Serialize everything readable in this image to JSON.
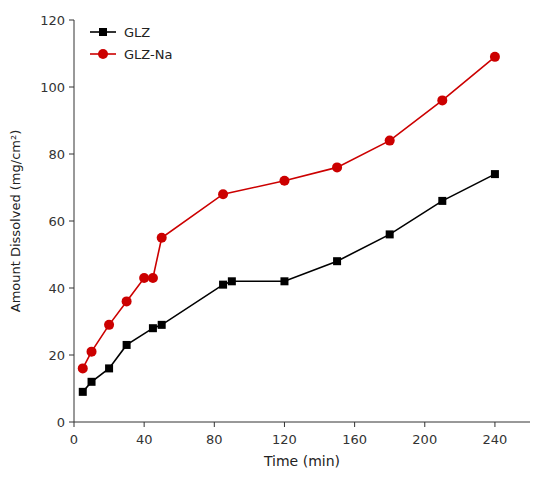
{
  "chart_data": {
    "type": "line",
    "x_label": "Time (min)",
    "y_label": "Amount Dissolved (mg/cm²)",
    "series": [
      {
        "name": "GLZ",
        "color": "#000000",
        "marker": "square",
        "x": [
          5,
          10,
          20,
          30,
          45,
          50,
          85,
          90,
          120,
          150,
          180,
          210,
          240
        ],
        "values": [
          9,
          12,
          16,
          23,
          28,
          29,
          41,
          42,
          42,
          48,
          56,
          66,
          74
        ]
      },
      {
        "name": "GLZ-Na",
        "color": "#cc0000",
        "marker": "circle",
        "x": [
          5,
          10,
          20,
          30,
          40,
          45,
          50,
          85,
          120,
          150,
          180,
          210,
          240
        ],
        "values": [
          16,
          21,
          29,
          36,
          43,
          43,
          55,
          68,
          72,
          76,
          84,
          96,
          109
        ]
      }
    ],
    "xlim": [
      0,
      260
    ],
    "ylim": [
      0,
      120
    ],
    "xticks": [
      0,
      40,
      80,
      120,
      160,
      200,
      240
    ],
    "yticks": [
      0,
      20,
      40,
      60,
      80,
      100,
      120
    ],
    "grid": false,
    "legend": "upper left"
  }
}
